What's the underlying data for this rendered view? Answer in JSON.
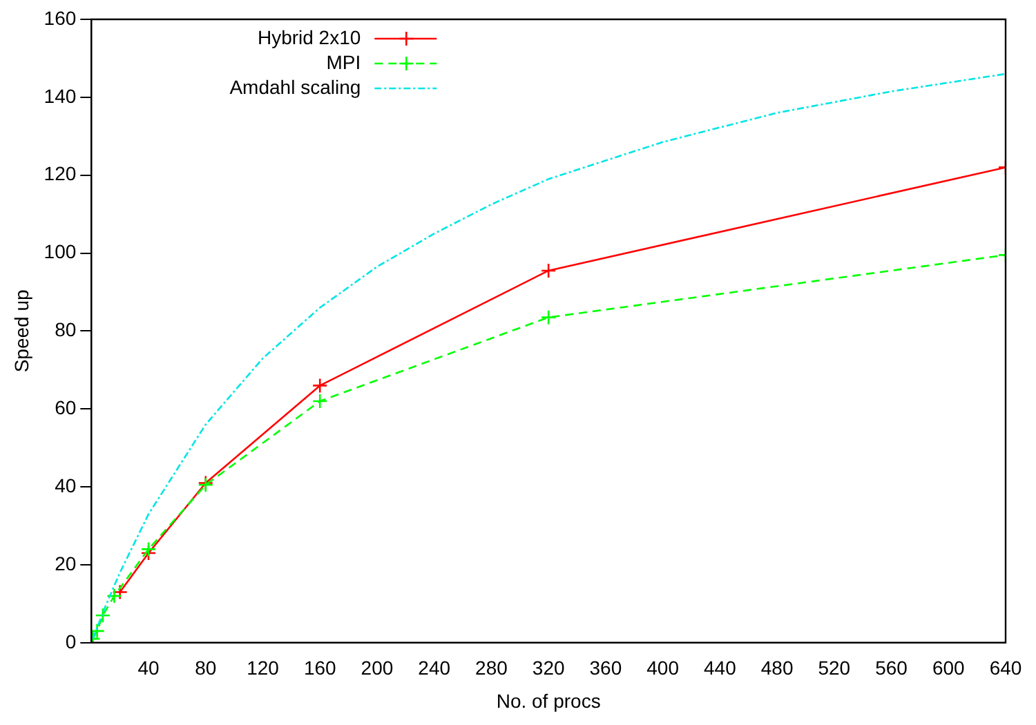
{
  "chart_data": {
    "type": "line",
    "xlabel": "No. of procs",
    "ylabel": "Speed up",
    "xlim": [
      0,
      640
    ],
    "xticks": [
      40,
      80,
      120,
      160,
      200,
      240,
      280,
      320,
      360,
      400,
      440,
      480,
      520,
      560,
      600,
      640
    ],
    "ylim": [
      0,
      160
    ],
    "yticks": [
      0,
      20,
      40,
      60,
      80,
      100,
      120,
      140,
      160
    ],
    "grid": false,
    "legend": "top left",
    "series": [
      {
        "name": "Hybrid 2x10",
        "color": "#ff0000",
        "marker": "cross",
        "line_style": "solid",
        "x": [
          20,
          40,
          80,
          160,
          320,
          640
        ],
        "values": [
          13,
          23,
          41,
          66,
          95.5,
          122
        ]
      },
      {
        "name": "MPI",
        "color": "#00ff00",
        "marker": "cross",
        "line_style": "dashed",
        "x": [
          1,
          4,
          8,
          16,
          40,
          80,
          160,
          320,
          640
        ],
        "values": [
          1,
          3,
          7,
          12,
          24,
          40.5,
          62,
          83.5,
          99.5
        ]
      },
      {
        "name": "Amdahl scaling",
        "color": "#00e5e5",
        "marker": "none",
        "line_style": "dashed",
        "x": [
          1,
          10,
          20,
          40,
          80,
          120,
          160,
          200,
          240,
          280,
          320,
          400,
          480,
          560,
          640
        ],
        "values": [
          1,
          9.5,
          18,
          33,
          56,
          73,
          86,
          96.5,
          105,
          112.5,
          119,
          128.5,
          136,
          141.5,
          146
        ]
      }
    ]
  }
}
